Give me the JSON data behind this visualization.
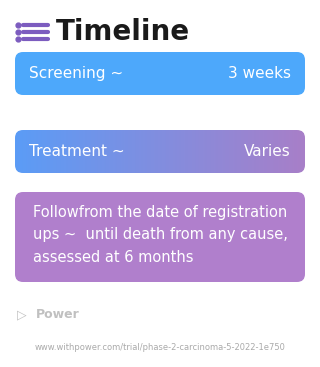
{
  "title": "Timeline",
  "title_fontsize": 20,
  "title_color": "#1a1a1a",
  "background_color": "#ffffff",
  "icon_color": "#7c5cbf",
  "bars": [
    {
      "label_left": "Screening ~",
      "label_right": "3 weeks",
      "bg_color": "#4da8fb",
      "gradient": false,
      "grad_start": "#4da8fb",
      "grad_end": "#4da8fb",
      "text_color": "#ffffff",
      "fontsize": 11,
      "type": "two_col"
    },
    {
      "label_left": "Treatment ~",
      "label_right": "Varies",
      "bg_color": "#8080d0",
      "gradient": true,
      "grad_start": "#5b9cf6",
      "grad_end": "#a87fc8",
      "text_color": "#ffffff",
      "fontsize": 11,
      "type": "two_col"
    },
    {
      "label_left": "Followfrom the date of registration\nups ~  until death from any cause,\nassessed at 6 months",
      "label_right": "",
      "bg_color": "#b07fcc",
      "gradient": false,
      "grad_start": "#b07fcc",
      "grad_end": "#b07fcc",
      "text_color": "#ffffff",
      "fontsize": 10.5,
      "type": "multi"
    }
  ],
  "footer_logo_text": "Power",
  "footer_url": "www.withpower.com/trial/phase-2-carcinoma-5-2022-1e750",
  "footer_color": "#aaaaaa",
  "footer_fontsize": 6.0
}
